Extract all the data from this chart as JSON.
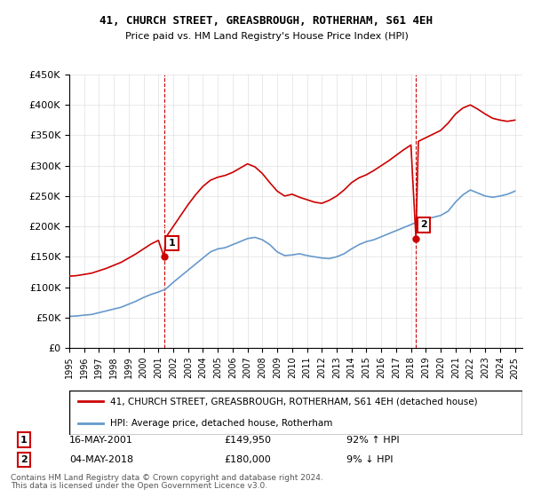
{
  "title": "41, CHURCH STREET, GREASBROUGH, ROTHERHAM, S61 4EH",
  "subtitle": "Price paid vs. HM Land Registry's House Price Index (HPI)",
  "ylabel": "",
  "xlabel": "",
  "ylim": [
    0,
    450000
  ],
  "xlim_start": 1995.0,
  "xlim_end": 2025.5,
  "yticks": [
    0,
    50000,
    100000,
    150000,
    200000,
    250000,
    300000,
    350000,
    400000,
    450000
  ],
  "ytick_labels": [
    "£0",
    "£50K",
    "£100K",
    "£150K",
    "£200K",
    "£250K",
    "£300K",
    "£350K",
    "£400K",
    "£450K"
  ],
  "sale1_year": 2001.375,
  "sale1_price": 149950,
  "sale2_year": 2018.337,
  "sale2_price": 180000,
  "sale1_label": "1",
  "sale2_label": "2",
  "sale1_date": "16-MAY-2001",
  "sale1_amount": "£149,950",
  "sale1_hpi": "92% ↑ HPI",
  "sale2_date": "04-MAY-2018",
  "sale2_amount": "£180,000",
  "sale2_hpi": "9% ↓ HPI",
  "line_color_property": "#cc0000",
  "line_color_hpi": "#6699cc",
  "vline_color": "#cc0000",
  "marker_box_color": "#cc0000",
  "legend_label_property": "41, CHURCH STREET, GREASBROUGH, ROTHERHAM, S61 4EH (detached house)",
  "legend_label_hpi": "HPI: Average price, detached house, Rotherham",
  "footer1": "Contains HM Land Registry data © Crown copyright and database right 2024.",
  "footer2": "This data is licensed under the Open Government Licence v3.0.",
  "hpi_years": [
    1995,
    1995.5,
    1996,
    1996.5,
    1997,
    1997.5,
    1998,
    1998.5,
    1999,
    1999.5,
    2000,
    2000.5,
    2001,
    2001.5,
    2002,
    2002.5,
    2003,
    2003.5,
    2004,
    2004.5,
    2005,
    2005.5,
    2006,
    2006.5,
    2007,
    2007.5,
    2008,
    2008.5,
    2009,
    2009.5,
    2010,
    2010.5,
    2011,
    2011.5,
    2012,
    2012.5,
    2013,
    2013.5,
    2014,
    2014.5,
    2015,
    2015.5,
    2016,
    2016.5,
    2017,
    2017.5,
    2018,
    2018.5,
    2019,
    2019.5,
    2020,
    2020.5,
    2021,
    2021.5,
    2022,
    2022.5,
    2023,
    2023.5,
    2024,
    2024.5,
    2025
  ],
  "hpi_values": [
    52000,
    52500,
    54000,
    55000,
    58000,
    61000,
    64000,
    67000,
    72000,
    77000,
    83000,
    88000,
    92000,
    97000,
    108000,
    118000,
    128000,
    138000,
    148000,
    158000,
    163000,
    165000,
    170000,
    175000,
    180000,
    182000,
    178000,
    170000,
    158000,
    152000,
    153000,
    155000,
    152000,
    150000,
    148000,
    147000,
    150000,
    155000,
    163000,
    170000,
    175000,
    178000,
    183000,
    188000,
    193000,
    198000,
    203000,
    208000,
    212000,
    215000,
    218000,
    225000,
    240000,
    252000,
    260000,
    255000,
    250000,
    248000,
    250000,
    253000,
    258000
  ],
  "prop_years": [
    1995,
    1995.5,
    1996,
    1996.5,
    1997,
    1997.5,
    1998,
    1998.5,
    1999,
    1999.5,
    2000,
    2000.5,
    2001,
    2001.375,
    2001.5,
    2002,
    2002.5,
    2003,
    2003.5,
    2004,
    2004.5,
    2005,
    2005.5,
    2006,
    2006.5,
    2007,
    2007.5,
    2008,
    2008.5,
    2009,
    2009.5,
    2010,
    2010.5,
    2011,
    2011.5,
    2012,
    2012.5,
    2013,
    2013.5,
    2014,
    2014.5,
    2015,
    2015.5,
    2016,
    2016.5,
    2017,
    2017.5,
    2018,
    2018.337,
    2018.5,
    2019,
    2019.5,
    2020,
    2020.5,
    2021,
    2021.5,
    2022,
    2022.5,
    2023,
    2023.5,
    2024,
    2024.5,
    2025
  ],
  "prop_values": [
    118000,
    119000,
    121000,
    123000,
    127000,
    131000,
    136000,
    141000,
    148000,
    155000,
    163000,
    171000,
    177000,
    149950,
    182000,
    200000,
    218000,
    236000,
    252000,
    266000,
    276000,
    281000,
    284000,
    289000,
    296000,
    303000,
    298000,
    287000,
    272000,
    258000,
    250000,
    253000,
    248000,
    244000,
    240000,
    238000,
    243000,
    250000,
    260000,
    272000,
    280000,
    285000,
    292000,
    300000,
    308000,
    317000,
    326000,
    334000,
    180000,
    340000,
    346000,
    352000,
    358000,
    370000,
    385000,
    395000,
    400000,
    393000,
    385000,
    378000,
    375000,
    373000,
    375000
  ]
}
